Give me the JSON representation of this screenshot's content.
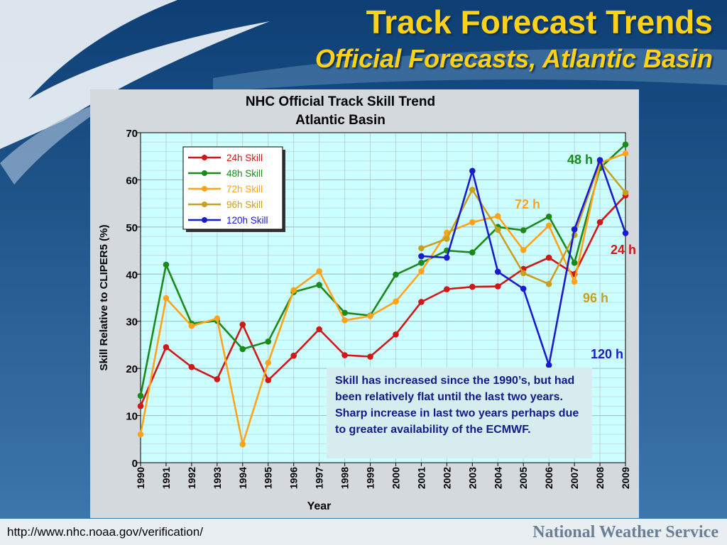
{
  "slide": {
    "title": "Track Forecast Trends",
    "subtitle": "Official Forecasts, Atlantic Basin",
    "footer_url": "http://www.nhc.noaa.gov/verification/",
    "footer_brand": "National Weather Service",
    "note": "Skill has increased since the 1990’s, but had been relatively flat until the last two years. Sharp increase in last two years perhaps due to greater availability of the ECMWF."
  },
  "chart_data": {
    "type": "line",
    "title": "NHC Official Track Skill Trend",
    "subtitle": "Atlantic Basin",
    "xlabel": "Year",
    "ylabel": "Skill Relative to CLIPER5 (%)",
    "xlim": [
      1990,
      2009
    ],
    "ylim": [
      0,
      70
    ],
    "yticks": [
      0,
      10,
      20,
      30,
      40,
      50,
      60,
      70
    ],
    "x": [
      1990,
      1991,
      1992,
      1993,
      1994,
      1995,
      1996,
      1997,
      1998,
      1999,
      2000,
      2001,
      2002,
      2003,
      2004,
      2005,
      2006,
      2007,
      2008,
      2009
    ],
    "grid": true,
    "legend_position": "top-left",
    "series": [
      {
        "name": "24h Skill",
        "label": "24 h",
        "color": "#d01818",
        "x": [
          1990,
          1991,
          1992,
          1993,
          1994,
          1995,
          1996,
          1997,
          1998,
          1999,
          2000,
          2001,
          2002,
          2003,
          2004,
          2005,
          2006,
          2007,
          2008,
          2009
        ],
        "values": [
          12,
          24.5,
          20.3,
          17.7,
          29.3,
          17.5,
          22.7,
          28.3,
          22.8,
          22.5,
          27.2,
          34.1,
          36.8,
          37.3,
          37.4,
          41.1,
          43.5,
          40.0,
          51.0,
          56.7
        ]
      },
      {
        "name": "48h Skill",
        "label": "48 h",
        "color": "#1a8a1a",
        "x": [
          1990,
          1991,
          1992,
          1993,
          1994,
          1995,
          1996,
          1997,
          1998,
          1999,
          2000,
          2001,
          2002,
          2003,
          2004,
          2005,
          2006,
          2007,
          2008,
          2009
        ],
        "values": [
          14.2,
          42.0,
          29.5,
          30.1,
          24.1,
          25.7,
          36.2,
          37.7,
          31.8,
          31.2,
          39.9,
          42.4,
          45.0,
          44.6,
          50.0,
          49.3,
          52.2,
          42.4,
          62.5,
          67.5
        ]
      },
      {
        "name": "72h Skill",
        "label": "72 h",
        "color": "#ffa31a",
        "x": [
          1990,
          1991,
          1992,
          1993,
          1994,
          1995,
          1996,
          1997,
          1998,
          1999,
          2000,
          2001,
          2002,
          2003,
          2004,
          2005,
          2006,
          2007,
          2008,
          2009
        ],
        "values": [
          6.0,
          34.9,
          29.0,
          30.6,
          3.9,
          21.2,
          36.6,
          40.6,
          30.2,
          31.1,
          34.2,
          40.6,
          48.8,
          51.0,
          52.3,
          45.1,
          50.3,
          38.4,
          63.6,
          65.6
        ]
      },
      {
        "name": "96h Skill",
        "label": "96 h",
        "color": "#c8a020",
        "x": [
          2001,
          2002,
          2003,
          2004,
          2005,
          2006,
          2007,
          2008,
          2009
        ],
        "values": [
          45.5,
          47.5,
          57.9,
          49.4,
          40.2,
          37.9,
          48.3,
          63.9,
          57.3
        ]
      },
      {
        "name": "120h Skill",
        "label": "120 h",
        "color": "#1a1ad0",
        "x": [
          2001,
          2002,
          2003,
          2004,
          2005,
          2006,
          2007,
          2008,
          2009
        ],
        "values": [
          43.8,
          43.5,
          61.9,
          40.5,
          36.9,
          20.7,
          49.5,
          64.2,
          48.7
        ]
      }
    ]
  }
}
